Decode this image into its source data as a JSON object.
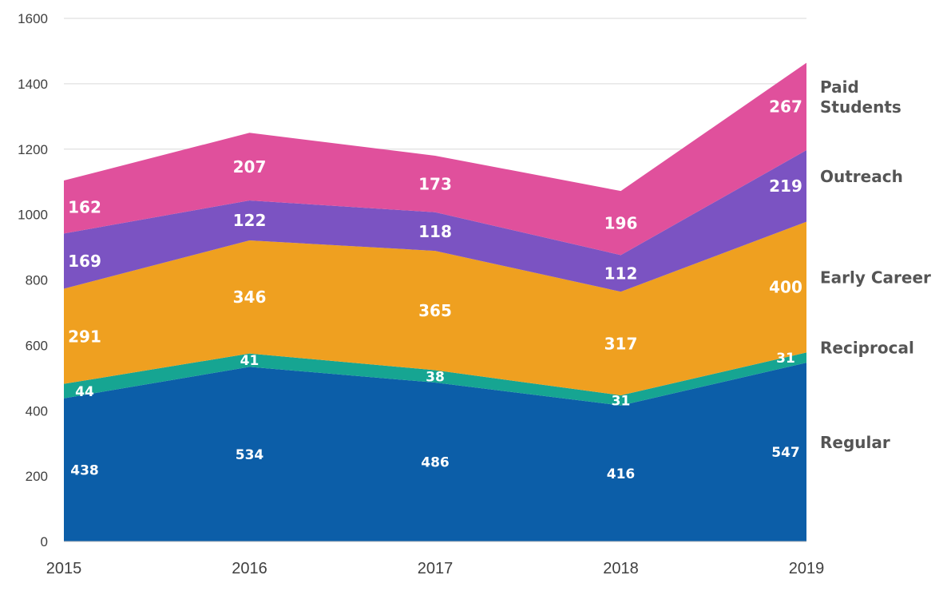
{
  "chart_data": {
    "type": "area",
    "stacked": true,
    "title": "",
    "xlabel": "",
    "ylabel": "",
    "ylim": [
      0,
      1600
    ],
    "yticks": [
      0,
      200,
      400,
      600,
      800,
      1000,
      1200,
      1400,
      1600
    ],
    "grid": true,
    "legend_placement": "right",
    "categories": [
      "2015",
      "2016",
      "2017",
      "2018",
      "2019"
    ],
    "series": [
      {
        "name": "Regular",
        "color": "#0c5ea8",
        "values": [
          438,
          534,
          486,
          416,
          547
        ]
      },
      {
        "name": "Reciprocal",
        "color": "#16a592",
        "values": [
          44,
          41,
          38,
          31,
          31
        ]
      },
      {
        "name": "Early Career",
        "color": "#efa020",
        "values": [
          291,
          346,
          365,
          317,
          400
        ]
      },
      {
        "name": "Outreach",
        "color": "#7b53c2",
        "values": [
          169,
          122,
          118,
          112,
          219
        ]
      },
      {
        "name": "Paid Students",
        "color": "#e0509c",
        "values": [
          162,
          207,
          173,
          196,
          267
        ]
      }
    ],
    "legend_lines": [
      {
        "series": "Regular",
        "lines": [
          "Regular"
        ]
      },
      {
        "series": "Reciprocal",
        "lines": [
          "Reciprocal"
        ]
      },
      {
        "series": "Early Career",
        "lines": [
          "Early Career"
        ]
      },
      {
        "series": "Outreach",
        "lines": [
          "Outreach"
        ]
      },
      {
        "series": "Paid Students",
        "lines": [
          "Paid",
          "Students"
        ]
      }
    ]
  }
}
